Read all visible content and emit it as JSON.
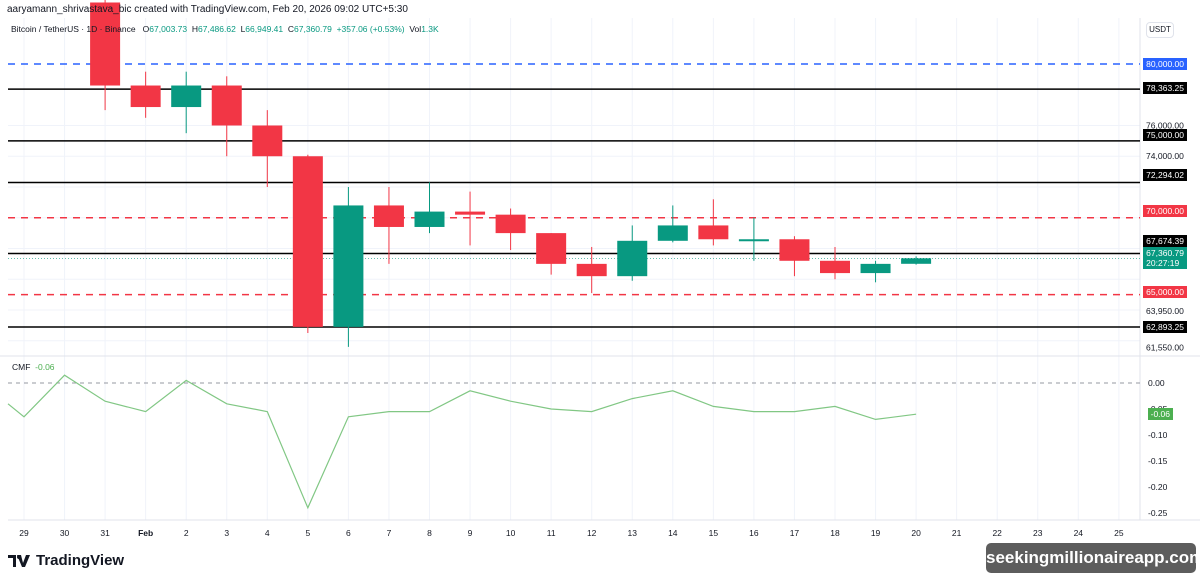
{
  "header": {
    "caption": "aaryamann_shrivastava_bic created with TradingView.com, Feb 20, 2026 09:02 UTC+5:30",
    "symbol": "Bitcoin / TetherUS · 1D · Binance",
    "open_label": "O",
    "open": "67,003.73",
    "high_label": "H",
    "high": "67,486.62",
    "low_label": "L",
    "low": "66,949.41",
    "close_label": "C",
    "close": "67,360.79",
    "change": "+357.06 (+0.53%)",
    "vol_label": "Vol",
    "vol": "1.3K"
  },
  "currency_button": "USDT",
  "indicator": {
    "name": "CMF",
    "value": "-0.06"
  },
  "branding": {
    "logo": "TradingView",
    "watermark": "seekingmillionaireapp.com"
  },
  "price_labels": [
    {
      "text": "80,000.00",
      "y": 64,
      "bg": "#2962ff"
    },
    {
      "text": "78,363.25",
      "y": 88,
      "bg": "#000000"
    },
    {
      "text": "75,000.00",
      "y": 135,
      "bg": "#000000"
    },
    {
      "text": "72,294.02",
      "y": 175,
      "bg": "#000000"
    },
    {
      "text": "70,000.00",
      "y": 211,
      "bg": "#f23645"
    },
    {
      "text": "67,674.39",
      "y": 241,
      "bg": "#000000"
    },
    {
      "text": "65,000.00",
      "y": 292,
      "bg": "#f23645"
    },
    {
      "text": "62,893.25",
      "y": 327,
      "bg": "#000000"
    }
  ],
  "current_price": {
    "price": "67,360.79",
    "countdown": "20:27:19",
    "bg": "#089981"
  },
  "cmf_current": {
    "text": "-0.06",
    "bg": "#4caf50"
  },
  "x_labels": [
    "29",
    "30",
    "31",
    "Feb",
    "2",
    "3",
    "4",
    "5",
    "6",
    "7",
    "8",
    "9",
    "10",
    "11",
    "12",
    "13",
    "14",
    "15",
    "16",
    "17",
    "18",
    "19",
    "20",
    "21",
    "22",
    "23",
    "24",
    "25"
  ],
  "chart_data": [
    {
      "type": "candlestick",
      "title": "Bitcoin / TetherUS · 1D · Binance",
      "ylabel": "USDT",
      "y_ticks": [
        76000,
        74000,
        63950,
        61550
      ],
      "ylim": [
        61000,
        82000
      ],
      "horizontal_lines": [
        {
          "value": 80000,
          "style": "dashed",
          "color": "#2962ff"
        },
        {
          "value": 78363.25,
          "style": "solid",
          "color": "#000000"
        },
        {
          "value": 75000,
          "style": "solid",
          "color": "#000000"
        },
        {
          "value": 72294.02,
          "style": "solid",
          "color": "#000000"
        },
        {
          "value": 70000,
          "style": "dashed",
          "color": "#f23645"
        },
        {
          "value": 67674.39,
          "style": "solid",
          "color": "#000000"
        },
        {
          "value": 65000,
          "style": "dashed",
          "color": "#f23645"
        },
        {
          "value": 62893.25,
          "style": "solid",
          "color": "#000000"
        }
      ],
      "categories": [
        "Jan 31",
        "Feb 1",
        "Feb 2",
        "Feb 3",
        "Feb 4",
        "Feb 5",
        "Feb 6",
        "Feb 7",
        "Feb 8",
        "Feb 9",
        "Feb 10",
        "Feb 11",
        "Feb 12",
        "Feb 13",
        "Feb 14",
        "Feb 15",
        "Feb 16",
        "Feb 17",
        "Feb 18",
        "Feb 19",
        "Feb 20"
      ],
      "ohlc": [
        [
          84000,
          84500,
          77000,
          78600
        ],
        [
          78600,
          79500,
          76500,
          77200
        ],
        [
          77200,
          79500,
          75500,
          78600
        ],
        [
          78600,
          79200,
          74000,
          76000
        ],
        [
          76000,
          77000,
          72000,
          74000
        ],
        [
          74000,
          74100,
          62500,
          62900
        ],
        [
          62900,
          72000,
          61600,
          70800
        ],
        [
          70800,
          72000,
          67000,
          69400
        ],
        [
          69400,
          72300,
          69000,
          70400
        ],
        [
          70400,
          71700,
          68200,
          70200
        ],
        [
          70200,
          70600,
          67900,
          69000
        ],
        [
          69000,
          69000,
          66300,
          67000
        ],
        [
          67000,
          68100,
          65100,
          66200
        ],
        [
          66200,
          69500,
          65900,
          68500
        ],
        [
          68500,
          70800,
          68400,
          69500
        ],
        [
          69500,
          71200,
          68200,
          68600
        ],
        [
          68600,
          70000,
          67200,
          68600
        ],
        [
          68600,
          68800,
          66200,
          67200
        ],
        [
          67200,
          68100,
          66000,
          66400
        ],
        [
          66400,
          67200,
          65800,
          67000
        ],
        [
          67003.73,
          67486.62,
          66949.41,
          67360.79
        ]
      ]
    },
    {
      "type": "line",
      "title": "CMF",
      "categories": [
        "Jan 28",
        "Jan 29",
        "Jan 30",
        "Jan 31",
        "Feb 1",
        "Feb 2",
        "Feb 3",
        "Feb 4",
        "Feb 5",
        "Feb 6",
        "Feb 7",
        "Feb 8",
        "Feb 9",
        "Feb 10",
        "Feb 11",
        "Feb 12",
        "Feb 13",
        "Feb 14",
        "Feb 15",
        "Feb 16",
        "Feb 17",
        "Feb 18",
        "Feb 19",
        "Feb 20"
      ],
      "values": [
        -0.04,
        -0.065,
        0.015,
        -0.035,
        -0.055,
        0.005,
        -0.04,
        -0.055,
        -0.24,
        -0.065,
        -0.055,
        -0.055,
        -0.015,
        -0.035,
        -0.05,
        -0.055,
        -0.03,
        -0.015,
        -0.045,
        -0.055,
        -0.055,
        -0.045,
        -0.07,
        -0.06
      ],
      "y_ticks": [
        0.0,
        -0.05,
        -0.1,
        -0.15,
        -0.2,
        -0.25
      ],
      "ylim": [
        -0.26,
        0.03
      ],
      "reference_line": 0
    }
  ]
}
